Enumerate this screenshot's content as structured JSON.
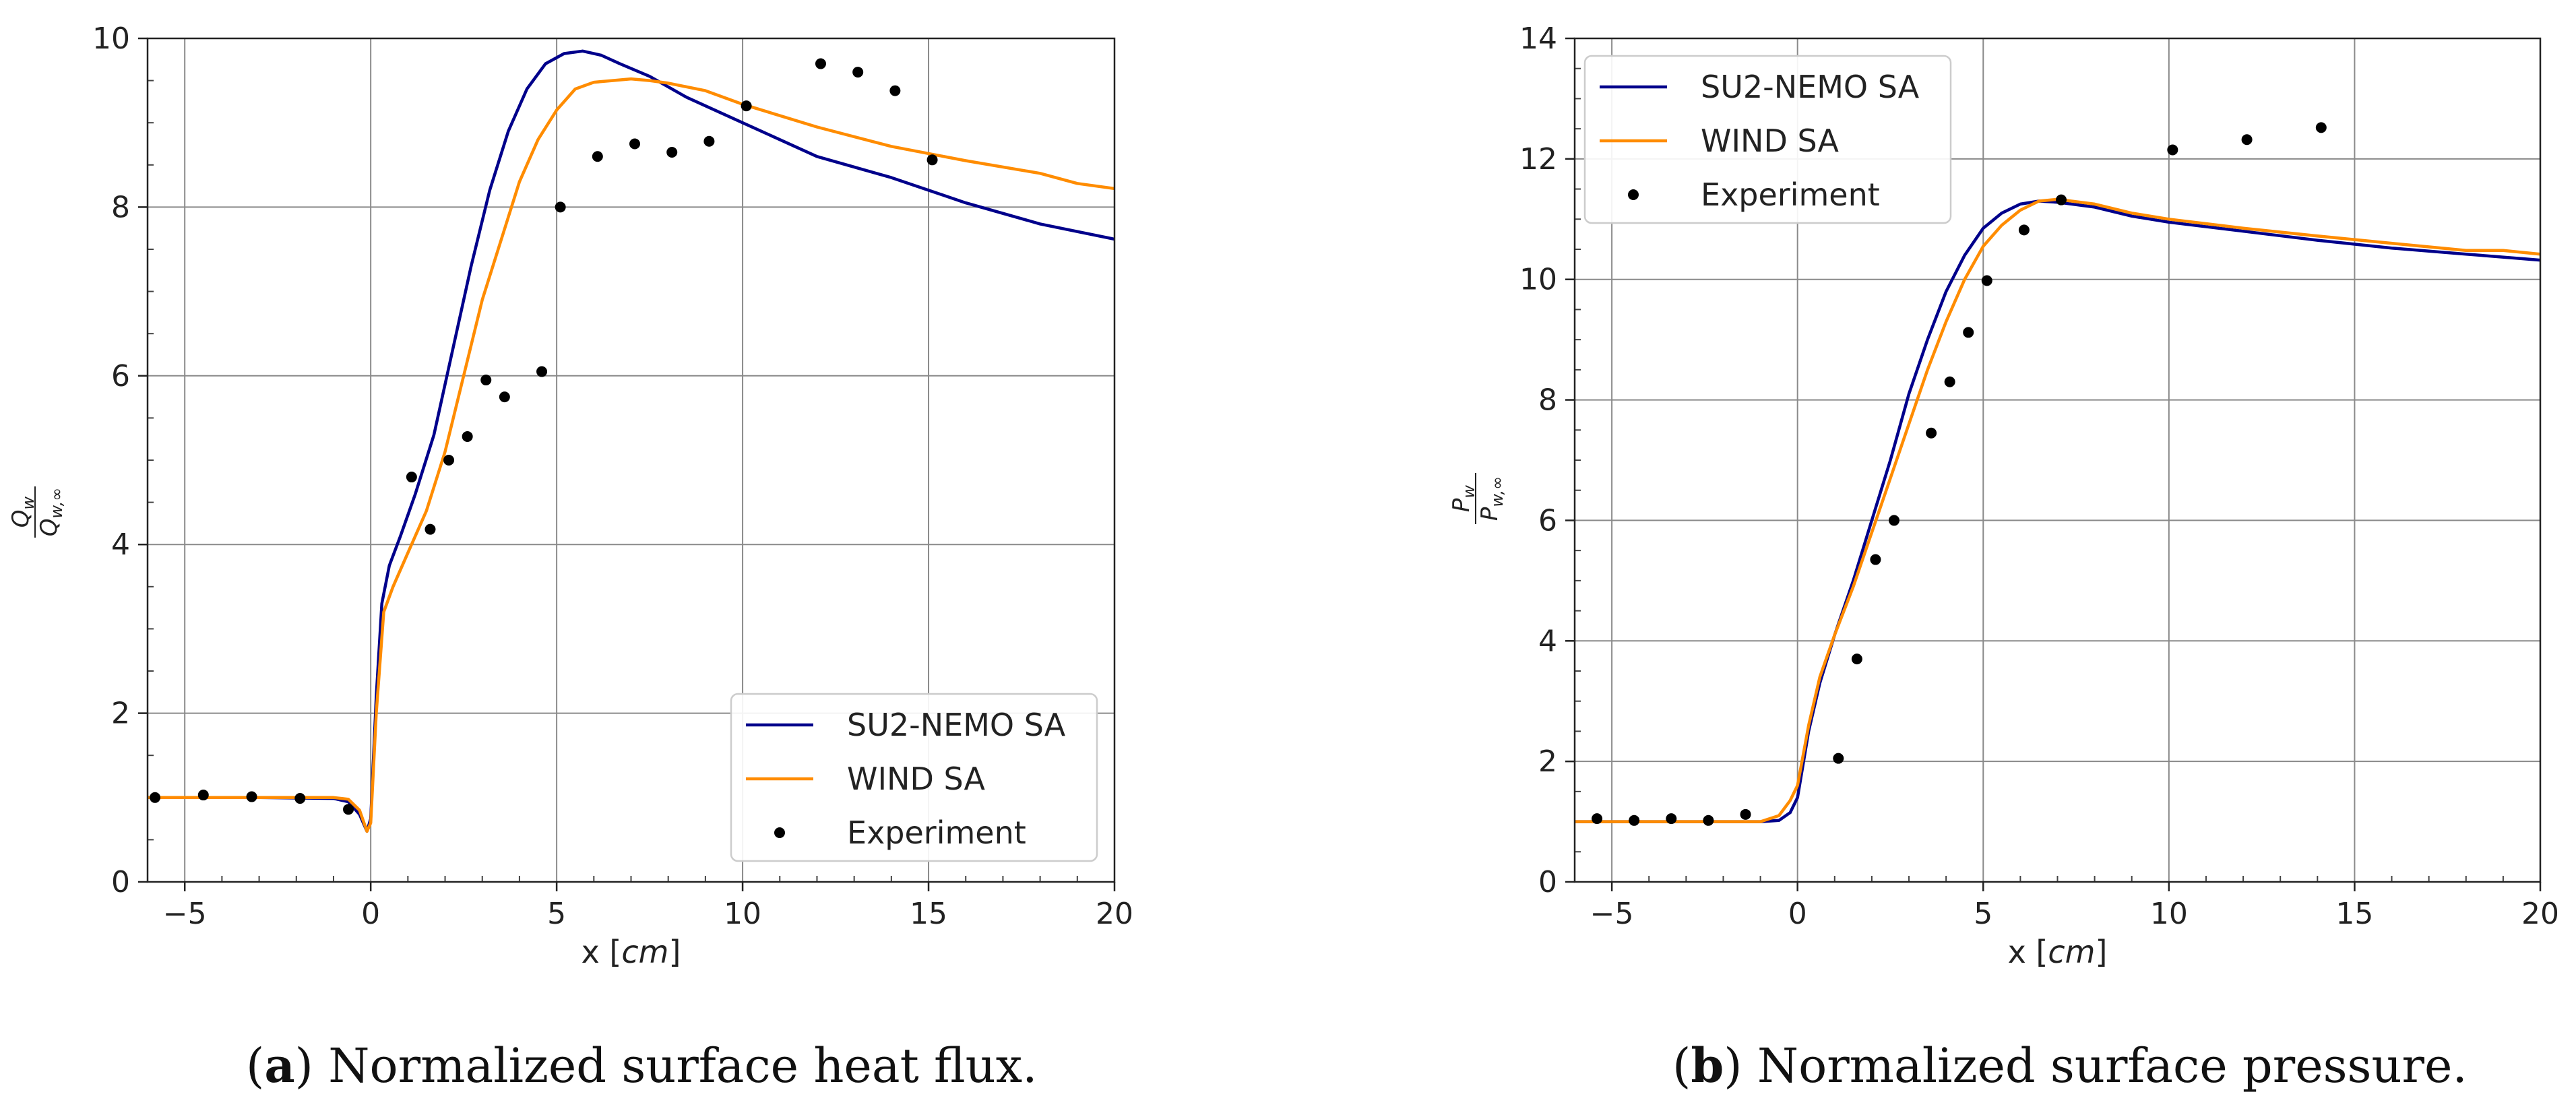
{
  "chart_data": [
    {
      "type": "line",
      "id": "a",
      "title": "",
      "xlabel": "x [cm]",
      "ylabel": "Q_w / Q_w,∞",
      "ylabel_num": "Q",
      "ylabel_num_sub": "w",
      "ylabel_den": "Q",
      "ylabel_den_sub": "w,∞",
      "xlim": [
        -6,
        20
      ],
      "ylim": [
        0,
        10
      ],
      "xticks": [
        -5,
        0,
        5,
        10,
        15,
        20
      ],
      "yticks": [
        0,
        2,
        4,
        6,
        8,
        10
      ],
      "xtick_labels": [
        "−5",
        "0",
        "5",
        "10",
        "15",
        "20"
      ],
      "ytick_labels": [
        "0",
        "2",
        "4",
        "6",
        "8",
        "10"
      ],
      "grid": true,
      "legend_position": "lower-right",
      "caption_letter": "a",
      "caption_text": "Normalized surface heat flux.",
      "series": [
        {
          "name": "SU2-NEMO SA",
          "style": "line",
          "color": "#00008b",
          "x": [
            -6,
            -3,
            -1,
            -0.6,
            -0.3,
            -0.1,
            0.0,
            0.15,
            0.3,
            0.5,
            0.8,
            1.2,
            1.7,
            2.2,
            2.7,
            3.2,
            3.7,
            4.2,
            4.7,
            5.2,
            5.7,
            6.2,
            6.7,
            7.5,
            8.5,
            10,
            12,
            14,
            16,
            18,
            20
          ],
          "y": [
            1.0,
            1.0,
            0.99,
            0.95,
            0.8,
            0.6,
            0.75,
            2.2,
            3.3,
            3.75,
            4.1,
            4.6,
            5.3,
            6.3,
            7.3,
            8.2,
            8.9,
            9.4,
            9.7,
            9.82,
            9.85,
            9.8,
            9.7,
            9.55,
            9.3,
            9.0,
            8.6,
            8.35,
            8.05,
            7.8,
            7.62
          ]
        },
        {
          "name": "WIND SA",
          "style": "line",
          "color": "#ff8c00",
          "x": [
            -6,
            -3,
            -1,
            -0.6,
            -0.3,
            -0.1,
            0.0,
            0.15,
            0.35,
            0.6,
            1.0,
            1.5,
            2.0,
            2.5,
            3.0,
            3.5,
            4.0,
            4.5,
            5.0,
            5.5,
            6.0,
            6.5,
            7.0,
            7.5,
            8.0,
            9.0,
            10,
            12,
            14,
            16,
            18,
            19,
            20
          ],
          "y": [
            1.0,
            1.0,
            1.0,
            0.98,
            0.85,
            0.6,
            0.7,
            2.0,
            3.2,
            3.5,
            3.9,
            4.4,
            5.1,
            6.0,
            6.9,
            7.6,
            8.3,
            8.8,
            9.15,
            9.4,
            9.48,
            9.5,
            9.52,
            9.5,
            9.47,
            9.38,
            9.22,
            8.95,
            8.72,
            8.55,
            8.4,
            8.28,
            8.22
          ]
        },
        {
          "name": "Experiment",
          "style": "scatter",
          "color": "#000000",
          "x": [
            -5.8,
            -4.5,
            -3.2,
            -1.9,
            -0.6,
            1.1,
            1.6,
            2.1,
            2.6,
            3.1,
            3.6,
            4.6,
            5.1,
            6.1,
            7.1,
            8.1,
            9.1,
            10.1,
            12.1,
            13.1,
            14.1,
            15.1
          ],
          "y": [
            1.0,
            1.03,
            1.01,
            0.99,
            0.86,
            4.8,
            4.18,
            5.0,
            5.28,
            5.95,
            5.75,
            6.05,
            8.0,
            8.6,
            8.75,
            8.65,
            8.78,
            9.2,
            9.7,
            9.6,
            9.38,
            8.56
          ]
        }
      ]
    },
    {
      "type": "line",
      "id": "b",
      "title": "",
      "xlabel": "x [cm]",
      "ylabel": "P_w / P_w,∞",
      "ylabel_num": "P",
      "ylabel_num_sub": "w",
      "ylabel_den": "P",
      "ylabel_den_sub": "w,∞",
      "xlim": [
        -6,
        20
      ],
      "ylim": [
        0,
        14
      ],
      "xticks": [
        -5,
        0,
        5,
        10,
        15,
        20
      ],
      "yticks": [
        0,
        2,
        4,
        6,
        8,
        10,
        12,
        14
      ],
      "xtick_labels": [
        "−5",
        "0",
        "5",
        "10",
        "15",
        "20"
      ],
      "ytick_labels": [
        "0",
        "2",
        "4",
        "6",
        "8",
        "10",
        "12",
        "14"
      ],
      "grid": true,
      "legend_position": "top-left",
      "caption_letter": "b",
      "caption_text": "Normalized surface pressure.",
      "series": [
        {
          "name": "SU2-NEMO SA",
          "style": "line",
          "color": "#00008b",
          "x": [
            -6,
            -3,
            -1,
            -0.5,
            -0.2,
            0.0,
            0.3,
            0.6,
            1.0,
            1.5,
            2.0,
            2.5,
            3.0,
            3.5,
            4.0,
            4.5,
            5.0,
            5.5,
            6.0,
            6.5,
            7.0,
            8.0,
            9.0,
            10,
            12,
            14,
            16,
            18,
            20
          ],
          "y": [
            1.0,
            1.0,
            1.0,
            1.02,
            1.15,
            1.4,
            2.5,
            3.3,
            4.1,
            5.0,
            6.0,
            7.0,
            8.1,
            9.0,
            9.8,
            10.4,
            10.85,
            11.1,
            11.25,
            11.3,
            11.28,
            11.2,
            11.05,
            10.95,
            10.8,
            10.65,
            10.52,
            10.42,
            10.32
          ]
        },
        {
          "name": "WIND SA",
          "style": "line",
          "color": "#ff8c00",
          "x": [
            -6,
            -3,
            -1,
            -0.5,
            -0.2,
            0.0,
            0.3,
            0.6,
            1.0,
            1.5,
            2.0,
            2.5,
            3.0,
            3.5,
            4.0,
            4.5,
            5.0,
            5.5,
            6.0,
            6.5,
            7.0,
            8.0,
            9.0,
            10,
            12,
            14,
            16,
            18,
            19,
            20
          ],
          "y": [
            1.0,
            1.0,
            1.0,
            1.1,
            1.35,
            1.6,
            2.6,
            3.4,
            4.1,
            4.9,
            5.8,
            6.7,
            7.6,
            8.5,
            9.3,
            10.0,
            10.55,
            10.9,
            11.15,
            11.3,
            11.33,
            11.25,
            11.1,
            11.0,
            10.85,
            10.72,
            10.6,
            10.48,
            10.48,
            10.42
          ]
        },
        {
          "name": "Experiment",
          "style": "scatter",
          "color": "#000000",
          "x": [
            -5.4,
            -4.4,
            -3.4,
            -2.4,
            -1.4,
            1.1,
            1.6,
            2.1,
            2.6,
            3.6,
            4.1,
            4.6,
            5.1,
            6.1,
            7.1,
            10.1,
            12.1,
            14.1
          ],
          "y": [
            1.05,
            1.02,
            1.05,
            1.02,
            1.12,
            2.05,
            3.7,
            5.35,
            6.0,
            7.45,
            8.3,
            9.12,
            9.98,
            10.82,
            11.32,
            12.15,
            12.32,
            12.52
          ]
        }
      ]
    }
  ]
}
